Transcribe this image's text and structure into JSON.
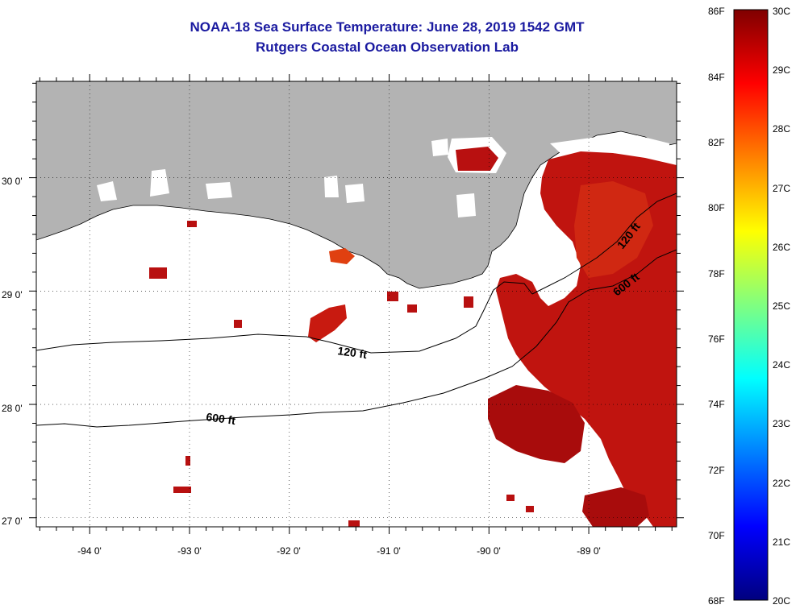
{
  "title": {
    "line1": "NOAA-18 Sea Surface Temperature:  June 28, 2019 1542 GMT",
    "line2": "Rutgers Coastal Ocean Observation Lab"
  },
  "map": {
    "land_color": "#b3b3b3",
    "ocean_color": "#ffffff",
    "grid_style": "dotted",
    "lon_ticks": [
      {
        "value": -94,
        "label": "-94 0'"
      },
      {
        "value": -93,
        "label": "-93 0'"
      },
      {
        "value": -92,
        "label": "-92 0'"
      },
      {
        "value": -91,
        "label": "-91 0'"
      },
      {
        "value": -90,
        "label": "-90 0'"
      },
      {
        "value": -89,
        "label": "-89 0'"
      }
    ],
    "lat_ticks": [
      {
        "value": 30,
        "label": "30 0'"
      },
      {
        "value": 29,
        "label": "29 0'"
      },
      {
        "value": 28,
        "label": "28 0'"
      },
      {
        "value": 27,
        "label": "27 0'"
      }
    ],
    "contours": [
      {
        "label": "120 ft"
      },
      {
        "label": "600 ft"
      },
      {
        "label": "120 ft"
      },
      {
        "label": "600 ft"
      }
    ]
  },
  "colorbar": {
    "gradient_colors": [
      "#00007f",
      "#0000ff",
      "#0080ff",
      "#00ffff",
      "#80ff80",
      "#ffff00",
      "#ff8000",
      "#ff0000",
      "#7f0000"
    ],
    "fahrenheit": [
      "86F",
      "84F",
      "82F",
      "80F",
      "78F",
      "76F",
      "74F",
      "72F",
      "70F",
      "68F"
    ],
    "celsius": [
      "30C",
      "29C",
      "28C",
      "27C",
      "26C",
      "25C",
      "24C",
      "23C",
      "22C",
      "21C",
      "20C"
    ]
  }
}
